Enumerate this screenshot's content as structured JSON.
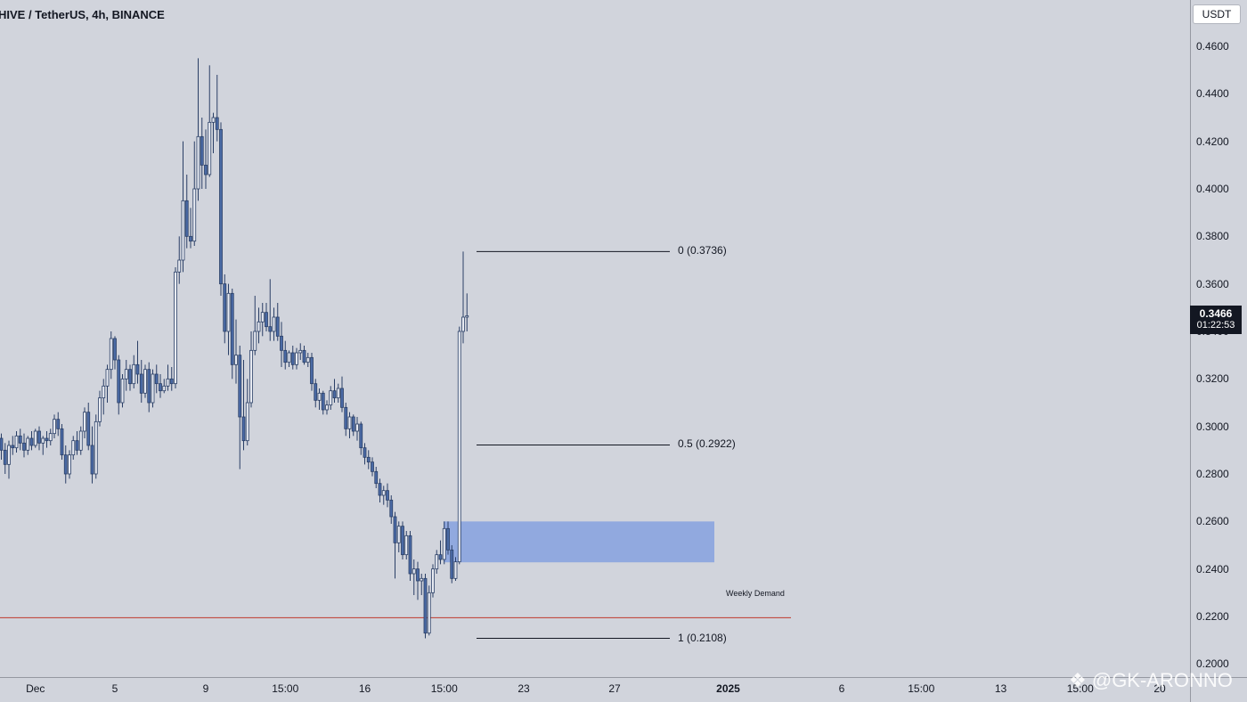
{
  "header": {
    "symbol": "HIVE / TetherUS, 4h, BINANCE"
  },
  "price_axis": {
    "unit": "USDT"
  },
  "last_price": {
    "value": "0.3466",
    "countdown": "01:22:53"
  },
  "watermark": {
    "text": "@GK-ARONNO"
  },
  "colors": {
    "background": "#d1d4dc",
    "candle": "#4a6aa5",
    "demand_zone": "#8da6de",
    "weekly_demand_line": "#c0392b",
    "fib_line": "#131722"
  },
  "icons": {
    "watermark_logo": "binance-diamond-icon"
  },
  "chart_data": {
    "type": "candlestick",
    "title": "HIVE / TetherUS, 4h, BINANCE",
    "ylim": [
      0.1945,
      0.4795
    ],
    "y_ticks": [
      "0.4600",
      "0.4400",
      "0.4200",
      "0.4000",
      "0.3800",
      "0.3600",
      "0.3400",
      "0.3200",
      "0.3000",
      "0.2800",
      "0.2600",
      "0.2400",
      "0.2200",
      "0.2000"
    ],
    "x_ticks": [
      {
        "label": "Dec",
        "bar": 9,
        "bold": false
      },
      {
        "label": "5",
        "bar": 30,
        "bold": false
      },
      {
        "label": "9",
        "bar": 54,
        "bold": false
      },
      {
        "label": "15:00",
        "bar": 75,
        "bold": false
      },
      {
        "label": "16",
        "bar": 96,
        "bold": false
      },
      {
        "label": "15:00",
        "bar": 117,
        "bold": false
      },
      {
        "label": "23",
        "bar": 138,
        "bold": false
      },
      {
        "label": "27",
        "bar": 162,
        "bold": false
      },
      {
        "label": "2025",
        "bar": 192,
        "bold": true
      },
      {
        "label": "6",
        "bar": 222,
        "bold": false
      },
      {
        "label": "15:00",
        "bar": 243,
        "bold": false
      },
      {
        "label": "13",
        "bar": 264,
        "bold": false
      },
      {
        "label": "15:00",
        "bar": 285,
        "bold": false
      },
      {
        "label": "20",
        "bar": 306,
        "bold": false
      }
    ],
    "fib_levels": [
      {
        "label": "0 (0.3736)",
        "price": 0.3736
      },
      {
        "label": "0.5 (0.2922)",
        "price": 0.2922
      },
      {
        "label": "1 (0.2108)",
        "price": 0.2108
      }
    ],
    "demand_zone": {
      "top": 0.26,
      "bottom": 0.2428
    },
    "weekly_demand": {
      "label": "Weekly Demand",
      "price": 0.2195
    },
    "candles": [
      [
        0.295,
        0.297,
        0.286,
        0.29
      ],
      [
        0.29,
        0.293,
        0.28,
        0.284
      ],
      [
        0.284,
        0.294,
        0.278,
        0.292
      ],
      [
        0.292,
        0.296,
        0.288,
        0.291
      ],
      [
        0.291,
        0.298,
        0.289,
        0.296
      ],
      [
        0.296,
        0.299,
        0.29,
        0.293
      ],
      [
        0.293,
        0.297,
        0.287,
        0.29
      ],
      [
        0.29,
        0.296,
        0.288,
        0.295
      ],
      [
        0.295,
        0.298,
        0.29,
        0.292
      ],
      [
        0.292,
        0.299,
        0.291,
        0.298
      ],
      [
        0.298,
        0.3,
        0.29,
        0.293
      ],
      [
        0.293,
        0.296,
        0.288,
        0.295
      ],
      [
        0.295,
        0.298,
        0.291,
        0.294
      ],
      [
        0.294,
        0.299,
        0.292,
        0.297
      ],
      [
        0.297,
        0.305,
        0.295,
        0.303
      ],
      [
        0.303,
        0.306,
        0.296,
        0.299
      ],
      [
        0.299,
        0.301,
        0.286,
        0.288
      ],
      [
        0.288,
        0.292,
        0.276,
        0.28
      ],
      [
        0.28,
        0.29,
        0.278,
        0.288
      ],
      [
        0.288,
        0.296,
        0.286,
        0.294
      ],
      [
        0.294,
        0.298,
        0.288,
        0.29
      ],
      [
        0.29,
        0.3,
        0.288,
        0.298
      ],
      [
        0.298,
        0.308,
        0.295,
        0.306
      ],
      [
        0.306,
        0.31,
        0.29,
        0.292
      ],
      [
        0.292,
        0.3,
        0.276,
        0.28
      ],
      [
        0.28,
        0.305,
        0.278,
        0.302
      ],
      [
        0.302,
        0.315,
        0.3,
        0.312
      ],
      [
        0.312,
        0.32,
        0.305,
        0.317
      ],
      [
        0.317,
        0.326,
        0.31,
        0.324
      ],
      [
        0.324,
        0.34,
        0.32,
        0.337
      ],
      [
        0.337,
        0.338,
        0.324,
        0.328
      ],
      [
        0.328,
        0.33,
        0.305,
        0.31
      ],
      [
        0.31,
        0.322,
        0.308,
        0.32
      ],
      [
        0.32,
        0.328,
        0.315,
        0.324
      ],
      [
        0.324,
        0.326,
        0.315,
        0.318
      ],
      [
        0.318,
        0.33,
        0.316,
        0.326
      ],
      [
        0.326,
        0.336,
        0.318,
        0.322
      ],
      [
        0.322,
        0.328,
        0.31,
        0.314
      ],
      [
        0.314,
        0.326,
        0.312,
        0.324
      ],
      [
        0.324,
        0.327,
        0.306,
        0.31
      ],
      [
        0.31,
        0.324,
        0.308,
        0.322
      ],
      [
        0.322,
        0.326,
        0.314,
        0.318
      ],
      [
        0.318,
        0.322,
        0.312,
        0.315
      ],
      [
        0.315,
        0.32,
        0.314,
        0.317
      ],
      [
        0.317,
        0.326,
        0.315,
        0.32
      ],
      [
        0.32,
        0.325,
        0.315,
        0.318
      ],
      [
        0.318,
        0.367,
        0.316,
        0.365
      ],
      [
        0.365,
        0.38,
        0.36,
        0.37
      ],
      [
        0.37,
        0.42,
        0.365,
        0.395
      ],
      [
        0.395,
        0.406,
        0.375,
        0.38
      ],
      [
        0.38,
        0.392,
        0.375,
        0.378
      ],
      [
        0.378,
        0.42,
        0.376,
        0.4
      ],
      [
        0.4,
        0.455,
        0.395,
        0.422
      ],
      [
        0.422,
        0.43,
        0.4,
        0.41
      ],
      [
        0.41,
        0.425,
        0.4,
        0.406
      ],
      [
        0.406,
        0.452,
        0.405,
        0.428
      ],
      [
        0.428,
        0.432,
        0.415,
        0.43
      ],
      [
        0.43,
        0.448,
        0.42,
        0.425
      ],
      [
        0.425,
        0.428,
        0.355,
        0.36
      ],
      [
        0.36,
        0.364,
        0.335,
        0.34
      ],
      [
        0.34,
        0.36,
        0.33,
        0.356
      ],
      [
        0.356,
        0.358,
        0.32,
        0.326
      ],
      [
        0.326,
        0.345,
        0.318,
        0.33
      ],
      [
        0.33,
        0.334,
        0.282,
        0.304
      ],
      [
        0.304,
        0.328,
        0.29,
        0.294
      ],
      [
        0.294,
        0.32,
        0.292,
        0.31
      ],
      [
        0.31,
        0.34,
        0.308,
        0.332
      ],
      [
        0.332,
        0.355,
        0.33,
        0.34
      ],
      [
        0.34,
        0.35,
        0.335,
        0.344
      ],
      [
        0.344,
        0.352,
        0.338,
        0.348
      ],
      [
        0.348,
        0.352,
        0.34,
        0.342
      ],
      [
        0.342,
        0.362,
        0.336,
        0.34
      ],
      [
        0.34,
        0.35,
        0.336,
        0.346
      ],
      [
        0.346,
        0.352,
        0.336,
        0.338
      ],
      [
        0.338,
        0.344,
        0.325,
        0.332
      ],
      [
        0.332,
        0.336,
        0.324,
        0.327
      ],
      [
        0.327,
        0.332,
        0.325,
        0.331
      ],
      [
        0.331,
        0.334,
        0.324,
        0.326
      ],
      [
        0.326,
        0.333,
        0.324,
        0.331
      ],
      [
        0.331,
        0.335,
        0.328,
        0.332
      ],
      [
        0.332,
        0.334,
        0.326,
        0.327
      ],
      [
        0.327,
        0.331,
        0.325,
        0.329
      ],
      [
        0.329,
        0.331,
        0.315,
        0.318
      ],
      [
        0.318,
        0.32,
        0.308,
        0.311
      ],
      [
        0.311,
        0.316,
        0.307,
        0.314
      ],
      [
        0.314,
        0.315,
        0.305,
        0.307
      ],
      [
        0.307,
        0.311,
        0.305,
        0.309
      ],
      [
        0.309,
        0.317,
        0.307,
        0.315
      ],
      [
        0.315,
        0.32,
        0.31,
        0.312
      ],
      [
        0.312,
        0.318,
        0.31,
        0.316
      ],
      [
        0.316,
        0.321,
        0.306,
        0.308
      ],
      [
        0.308,
        0.31,
        0.296,
        0.299
      ],
      [
        0.299,
        0.306,
        0.295,
        0.304
      ],
      [
        0.304,
        0.305,
        0.296,
        0.298
      ],
      [
        0.298,
        0.304,
        0.294,
        0.301
      ],
      [
        0.301,
        0.302,
        0.288,
        0.291
      ],
      [
        0.291,
        0.293,
        0.284,
        0.287
      ],
      [
        0.287,
        0.29,
        0.282,
        0.285
      ],
      [
        0.285,
        0.287,
        0.279,
        0.281
      ],
      [
        0.281,
        0.283,
        0.274,
        0.276
      ],
      [
        0.276,
        0.278,
        0.268,
        0.271
      ],
      [
        0.271,
        0.275,
        0.267,
        0.273
      ],
      [
        0.273,
        0.276,
        0.266,
        0.269
      ],
      [
        0.269,
        0.271,
        0.259,
        0.262
      ],
      [
        0.262,
        0.264,
        0.236,
        0.251
      ],
      [
        0.251,
        0.26,
        0.247,
        0.258
      ],
      [
        0.258,
        0.26,
        0.244,
        0.246
      ],
      [
        0.246,
        0.256,
        0.244,
        0.254
      ],
      [
        0.254,
        0.256,
        0.235,
        0.238
      ],
      [
        0.238,
        0.244,
        0.229,
        0.24
      ],
      [
        0.24,
        0.243,
        0.227,
        0.235
      ],
      [
        0.235,
        0.238,
        0.229,
        0.236
      ],
      [
        0.236,
        0.238,
        0.2108,
        0.213
      ],
      [
        0.213,
        0.233,
        0.212,
        0.23
      ],
      [
        0.23,
        0.242,
        0.228,
        0.24
      ],
      [
        0.24,
        0.248,
        0.238,
        0.246
      ],
      [
        0.246,
        0.252,
        0.242,
        0.244
      ],
      [
        0.244,
        0.26,
        0.242,
        0.257
      ],
      [
        0.257,
        0.26,
        0.246,
        0.248
      ],
      [
        0.248,
        0.25,
        0.234,
        0.236
      ],
      [
        0.236,
        0.245,
        0.235,
        0.243
      ],
      [
        0.243,
        0.342,
        0.242,
        0.34
      ],
      [
        0.34,
        0.3736,
        0.335,
        0.346
      ],
      [
        0.346,
        0.356,
        0.34,
        0.3466
      ]
    ]
  }
}
